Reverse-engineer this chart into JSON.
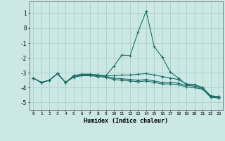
{
  "xlabel": "Humidex (Indice chaleur)",
  "background_color": "#cce8e4",
  "grid_color": "#aad0cc",
  "line_color": "#1a6e66",
  "xlim": [
    -0.5,
    23.5
  ],
  "ylim": [
    -5.5,
    1.8
  ],
  "yticks": [
    1,
    0,
    -1,
    -2,
    -3,
    -4,
    -5
  ],
  "xticks": [
    0,
    1,
    2,
    3,
    4,
    5,
    6,
    7,
    8,
    9,
    10,
    11,
    12,
    13,
    14,
    15,
    16,
    17,
    18,
    19,
    20,
    21,
    22,
    23
  ],
  "series": [
    {
      "x": [
        0,
        1,
        2,
        3,
        4,
        5,
        6,
        7,
        8,
        9,
        10,
        11,
        12,
        13,
        14,
        15,
        16,
        17,
        18,
        19,
        20,
        21,
        22,
        23
      ],
      "y": [
        -3.35,
        -3.65,
        -3.5,
        -3.05,
        -3.65,
        -3.2,
        -3.1,
        -3.1,
        -3.15,
        -3.2,
        -2.55,
        -1.8,
        -1.85,
        -0.25,
        1.15,
        -1.25,
        -1.95,
        -2.95,
        -3.35,
        -3.8,
        -3.8,
        -4.0,
        -4.55,
        -4.6
      ]
    },
    {
      "x": [
        0,
        1,
        2,
        3,
        4,
        5,
        6,
        7,
        8,
        9,
        10,
        11,
        12,
        13,
        14,
        15,
        16,
        17,
        18,
        19,
        20,
        21,
        22,
        23
      ],
      "y": [
        -3.35,
        -3.65,
        -3.5,
        -3.05,
        -3.65,
        -3.2,
        -3.1,
        -3.1,
        -3.15,
        -3.2,
        -3.2,
        -3.15,
        -3.15,
        -3.1,
        -3.05,
        -3.15,
        -3.25,
        -3.35,
        -3.45,
        -3.75,
        -3.8,
        -4.0,
        -4.55,
        -4.6
      ]
    },
    {
      "x": [
        0,
        1,
        2,
        3,
        4,
        5,
        6,
        7,
        8,
        9,
        10,
        11,
        12,
        13,
        14,
        15,
        16,
        17,
        18,
        19,
        20,
        21,
        22,
        23
      ],
      "y": [
        -3.35,
        -3.65,
        -3.5,
        -3.05,
        -3.65,
        -3.25,
        -3.15,
        -3.15,
        -3.2,
        -3.25,
        -3.35,
        -3.4,
        -3.45,
        -3.5,
        -3.45,
        -3.55,
        -3.65,
        -3.65,
        -3.7,
        -3.85,
        -3.9,
        -4.05,
        -4.6,
        -4.65
      ]
    },
    {
      "x": [
        0,
        1,
        2,
        3,
        4,
        5,
        6,
        7,
        8,
        9,
        10,
        11,
        12,
        13,
        14,
        15,
        16,
        17,
        18,
        19,
        20,
        21,
        22,
        23
      ],
      "y": [
        -3.35,
        -3.65,
        -3.5,
        -3.05,
        -3.65,
        -3.3,
        -3.2,
        -3.2,
        -3.25,
        -3.3,
        -3.45,
        -3.5,
        -3.55,
        -3.6,
        -3.55,
        -3.65,
        -3.75,
        -3.75,
        -3.8,
        -3.95,
        -4.0,
        -4.1,
        -4.65,
        -4.7
      ]
    }
  ]
}
